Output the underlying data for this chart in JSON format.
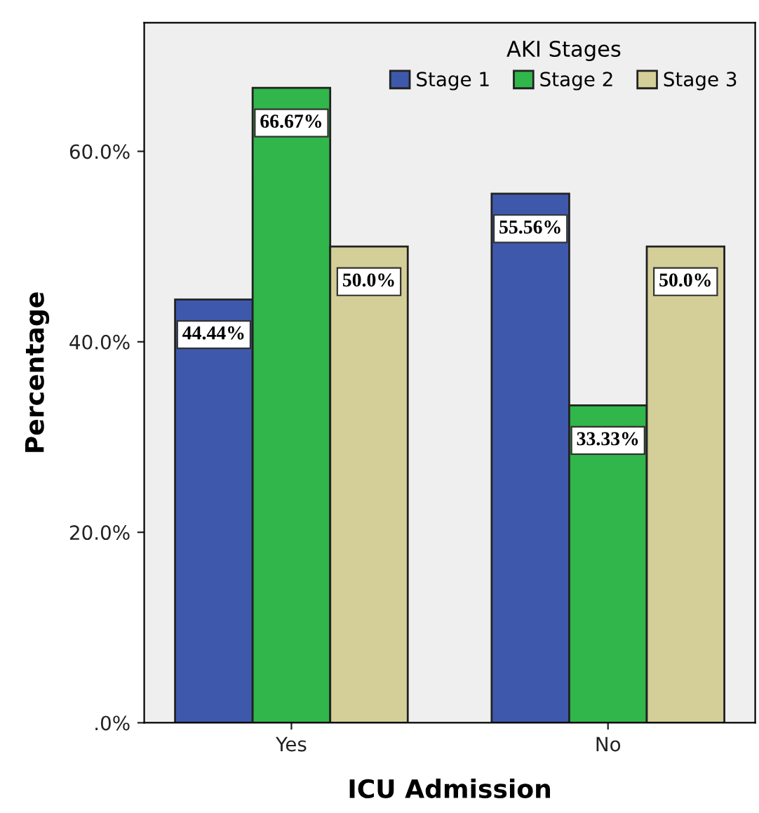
{
  "chart_data": {
    "type": "bar",
    "xlabel": "ICU Admission",
    "ylabel": "Percentage",
    "legend_title": "AKI Stages",
    "categories": [
      "Yes",
      "No"
    ],
    "series": [
      {
        "name": "Stage 1",
        "color": "#3e58ac",
        "values": [
          44.44,
          55.56
        ],
        "value_labels": [
          "44.44%",
          "55.56%"
        ]
      },
      {
        "name": "Stage 2",
        "color": "#30b64a",
        "values": [
          66.67,
          33.33
        ],
        "value_labels": [
          "66.67%",
          "33.33%"
        ]
      },
      {
        "name": "Stage 3",
        "color": "#d4cf98",
        "values": [
          50.0,
          50.0
        ],
        "value_labels": [
          "50.0%",
          "50.0%"
        ]
      }
    ],
    "ylim": [
      0,
      73.5
    ],
    "yticks": [
      {
        "value": 0,
        "label": ".0%"
      },
      {
        "value": 20,
        "label": "20.0%"
      },
      {
        "value": 40,
        "label": "40.0%"
      },
      {
        "value": 60,
        "label": "60.0%"
      }
    ],
    "grid": false,
    "legend": "top right"
  }
}
